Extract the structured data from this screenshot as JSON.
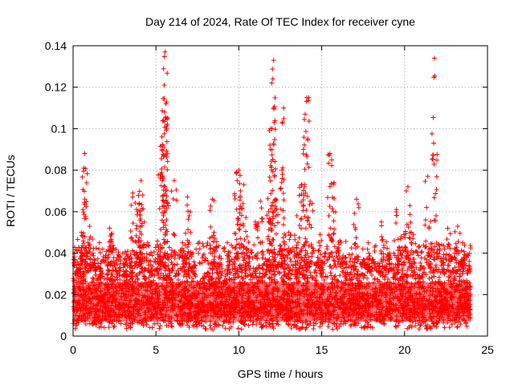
{
  "chart_data": {
    "type": "scatter",
    "title": "Day 214 of 2024, Rate Of TEC Index for receiver cyne",
    "xlabel": "GPS time / hours",
    "ylabel": "ROTI / TECUs",
    "xlim": [
      0,
      25
    ],
    "ylim": [
      0,
      0.14
    ],
    "x_ticks": [
      0,
      5,
      10,
      15,
      20,
      25
    ],
    "y_ticks": [
      0,
      0.02,
      0.04,
      0.06,
      0.08,
      0.1,
      0.12,
      0.14
    ],
    "x_tick_labels": [
      "0",
      "5",
      "10",
      "15",
      "20",
      "25"
    ],
    "y_tick_labels": [
      "0",
      "0.02",
      "0.04",
      "0.06",
      "0.08",
      "0.1",
      "0.12",
      "0.14"
    ],
    "grid": true,
    "marker": "+",
    "color": "#ff0000",
    "series": [
      {
        "name": "ROTI",
        "x": [
          0.1,
          0.3,
          0.5,
          0.6,
          0.65,
          0.7,
          0.9,
          1.0,
          1.2,
          1.5,
          2.2,
          2.3,
          3.1,
          3.6,
          3.9,
          4.0,
          4.1,
          4.2,
          4.3,
          4.5,
          5.3,
          5.4,
          5.45,
          5.5,
          5.55,
          5.6,
          5.7,
          6.1,
          6.6,
          6.9,
          7.0,
          8.4,
          8.5,
          9.3,
          9.9,
          10.0,
          10.1,
          10.3,
          10.5,
          11.0,
          11.3,
          11.8,
          11.9,
          12.0,
          12.05,
          12.1,
          12.2,
          12.5,
          12.6,
          12.7,
          13.0,
          13.5,
          13.8,
          13.9,
          14.0,
          14.1,
          14.3,
          14.9,
          15.5,
          15.6,
          15.7,
          16.1,
          16.4,
          17.1,
          17.8,
          18.1,
          18.6,
          19.1,
          19.5,
          19.8,
          20.1,
          20.2,
          20.4,
          21.4,
          21.6,
          21.8,
          21.9,
          22.6,
          23.0,
          23.2,
          23.5,
          23.7
        ],
        "y": [
          0.034,
          0.03,
          0.05,
          0.061,
          0.081,
          0.088,
          0.045,
          0.053,
          0.04,
          0.035,
          0.052,
          0.049,
          0.029,
          0.069,
          0.06,
          0.064,
          0.075,
          0.068,
          0.055,
          0.045,
          0.078,
          0.092,
          0.104,
          0.121,
          0.137,
          0.112,
          0.064,
          0.075,
          0.045,
          0.067,
          0.058,
          0.066,
          0.05,
          0.045,
          0.075,
          0.08,
          0.07,
          0.073,
          0.048,
          0.055,
          0.065,
          0.06,
          0.09,
          0.1,
          0.124,
          0.133,
          0.066,
          0.071,
          0.08,
          0.11,
          0.05,
          0.058,
          0.073,
          0.09,
          0.107,
          0.115,
          0.065,
          0.049,
          0.088,
          0.085,
          0.06,
          0.046,
          0.038,
          0.066,
          0.045,
          0.037,
          0.055,
          0.04,
          0.061,
          0.048,
          0.07,
          0.072,
          0.05,
          0.077,
          0.041,
          0.134,
          0.058,
          0.052,
          0.038,
          0.053,
          0.045,
          0.039
        ]
      }
    ],
    "baseline": {
      "description": "dense band of points between 0.003 and 0.035 across 0-24 h",
      "x_range": [
        0,
        24
      ],
      "y_range": [
        0.003,
        0.035
      ]
    }
  }
}
